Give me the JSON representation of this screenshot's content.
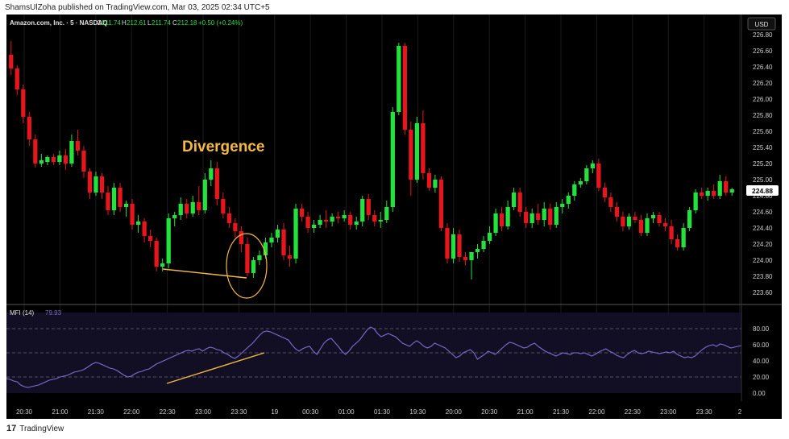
{
  "publisher_line": "ShamsUlZoha published on TradingView.com, Mar 03, 2025 02:34 UTC+5",
  "footer": {
    "logo_glyph": "17",
    "brand": "TradingView"
  },
  "symbol": {
    "name": "Amazon.com, Inc. · 5 · NASDAQ",
    "o_label": "O",
    "o": "211.74",
    "h_label": "H",
    "h": "212.61",
    "l_label": "L",
    "l": "211.74",
    "c_label": "C",
    "c": "212.18",
    "change": "+0.50 (+0.24%)"
  },
  "currency": "USD",
  "last_price": "224.88",
  "annotation": {
    "text": "Divergence",
    "color": "#f5b942"
  },
  "indicator": {
    "label": "MFI (14)",
    "value": "79.93"
  },
  "colors": {
    "up": "#22e33c",
    "down": "#e8161c",
    "mfi": "#7b6fd0",
    "annotation": "#f5b942",
    "mfi_bg": "#120f24"
  },
  "chart_data": [
    {
      "type": "candlestick",
      "price_axis_ticks": [
        "226.80",
        "226.60",
        "226.40",
        "226.20",
        "226.00",
        "225.80",
        "225.60",
        "225.40",
        "225.20",
        "225.00",
        "224.80",
        "224.60",
        "224.40",
        "224.20",
        "224.00",
        "223.80",
        "223.60"
      ],
      "ylim": [
        223.5,
        226.85
      ],
      "time_ticks": [
        "20:30",
        "21:00",
        "21:30",
        "22:00",
        "22:30",
        "23:00",
        "23:30",
        "19",
        "00:30",
        "01:00",
        "01:30",
        "19:30",
        "20:00",
        "20:30",
        "21:00",
        "21:30",
        "22:00",
        "22:30",
        "23:00",
        "23:30",
        "2"
      ],
      "candles": [
        [
          226.55,
          226.72,
          226.3,
          226.38
        ],
        [
          226.38,
          226.42,
          226.05,
          226.12
        ],
        [
          226.12,
          226.18,
          225.7,
          225.78
        ],
        [
          225.78,
          225.84,
          225.42,
          225.5
        ],
        [
          225.5,
          225.56,
          225.15,
          225.2
        ],
        [
          225.2,
          225.32,
          225.16,
          225.24
        ],
        [
          225.22,
          225.3,
          225.18,
          225.28
        ],
        [
          225.28,
          225.32,
          225.18,
          225.22
        ],
        [
          225.22,
          225.36,
          225.18,
          225.3
        ],
        [
          225.3,
          225.38,
          225.12,
          225.2
        ],
        [
          225.2,
          225.56,
          225.16,
          225.48
        ],
        [
          225.48,
          225.62,
          225.3,
          225.36
        ],
        [
          225.36,
          225.42,
          225.02,
          225.1
        ],
        [
          225.1,
          225.14,
          224.76,
          224.84
        ],
        [
          224.84,
          225.1,
          224.8,
          225.04
        ],
        [
          225.04,
          225.08,
          224.76,
          224.84
        ],
        [
          224.84,
          224.92,
          224.56,
          224.62
        ],
        [
          224.62,
          224.96,
          224.56,
          224.9
        ],
        [
          224.9,
          224.96,
          224.6,
          224.66
        ],
        [
          224.66,
          224.74,
          224.54,
          224.7
        ],
        [
          224.7,
          224.76,
          224.38,
          224.44
        ],
        [
          224.44,
          224.56,
          224.34,
          224.48
        ],
        [
          224.48,
          224.52,
          224.22,
          224.3
        ],
        [
          224.3,
          224.38,
          224.16,
          224.24
        ],
        [
          224.24,
          224.28,
          223.86,
          223.92
        ],
        [
          223.92,
          224.02,
          223.86,
          223.96
        ],
        [
          223.96,
          224.58,
          223.9,
          224.52
        ],
        [
          224.52,
          224.6,
          224.42,
          224.56
        ],
        [
          224.56,
          224.78,
          224.5,
          224.7
        ],
        [
          224.7,
          224.76,
          224.52,
          224.58
        ],
        [
          224.58,
          224.8,
          224.54,
          224.72
        ],
        [
          224.72,
          224.92,
          224.56,
          224.62
        ],
        [
          224.62,
          225.08,
          224.58,
          225.0
        ],
        [
          225.0,
          225.24,
          224.92,
          225.14
        ],
        [
          225.14,
          225.22,
          224.68,
          224.76
        ],
        [
          224.76,
          224.84,
          224.52,
          224.58
        ],
        [
          224.58,
          224.66,
          224.4,
          224.46
        ],
        [
          224.46,
          224.52,
          224.28,
          224.36
        ],
        [
          224.36,
          224.42,
          224.1,
          224.2
        ],
        [
          224.2,
          224.28,
          223.8,
          223.84
        ],
        [
          223.84,
          224.04,
          223.78,
          224.0
        ],
        [
          224.0,
          224.12,
          223.94,
          224.06
        ],
        [
          224.06,
          224.28,
          224.02,
          224.22
        ],
        [
          224.22,
          224.34,
          224.16,
          224.28
        ],
        [
          224.28,
          224.44,
          224.22,
          224.38
        ],
        [
          224.38,
          224.46,
          224.0,
          224.06
        ],
        [
          224.06,
          224.18,
          223.92,
          224.02
        ],
        [
          224.02,
          224.7,
          223.96,
          224.64
        ],
        [
          224.64,
          224.7,
          224.48,
          224.54
        ],
        [
          224.54,
          224.6,
          224.34,
          224.4
        ],
        [
          224.4,
          224.5,
          224.34,
          224.44
        ],
        [
          224.44,
          224.56,
          224.4,
          224.5
        ],
        [
          224.5,
          224.62,
          224.4,
          224.48
        ],
        [
          224.48,
          224.58,
          224.42,
          224.54
        ],
        [
          224.54,
          224.6,
          224.46,
          224.52
        ],
        [
          224.52,
          224.62,
          224.48,
          224.56
        ],
        [
          224.56,
          224.6,
          224.38,
          224.44
        ],
        [
          224.44,
          224.54,
          224.38,
          224.48
        ],
        [
          224.48,
          224.8,
          224.42,
          224.76
        ],
        [
          224.76,
          224.82,
          224.5,
          224.56
        ],
        [
          224.56,
          224.62,
          224.42,
          224.48
        ],
        [
          224.48,
          224.6,
          224.4,
          224.5
        ],
        [
          224.5,
          224.74,
          224.46,
          224.66
        ],
        [
          224.66,
          225.9,
          224.6,
          225.84
        ],
        [
          225.84,
          226.7,
          225.8,
          226.66
        ],
        [
          226.66,
          226.7,
          225.56,
          225.62
        ],
        [
          225.62,
          225.72,
          224.8,
          225.0
        ],
        [
          225.0,
          225.78,
          224.96,
          225.7
        ],
        [
          225.7,
          225.86,
          225.0,
          225.08
        ],
        [
          225.08,
          225.14,
          224.86,
          224.9
        ],
        [
          224.9,
          225.06,
          224.84,
          225.0
        ],
        [
          225.0,
          225.04,
          224.36,
          224.4
        ],
        [
          224.4,
          224.46,
          223.96,
          224.02
        ],
        [
          224.02,
          224.4,
          223.96,
          224.32
        ],
        [
          224.32,
          224.38,
          223.98,
          224.04
        ],
        [
          224.04,
          224.1,
          223.94,
          224.0
        ],
        [
          224.0,
          224.08,
          223.76,
          224.1
        ],
        [
          224.1,
          224.2,
          224.02,
          224.14
        ],
        [
          224.14,
          224.3,
          224.1,
          224.24
        ],
        [
          224.24,
          224.42,
          224.2,
          224.34
        ],
        [
          224.34,
          224.64,
          224.3,
          224.58
        ],
        [
          224.58,
          224.66,
          224.36,
          224.42
        ],
        [
          224.42,
          224.74,
          224.38,
          224.66
        ],
        [
          224.66,
          224.9,
          224.62,
          224.84
        ],
        [
          224.84,
          224.9,
          224.54,
          224.6
        ],
        [
          224.6,
          224.66,
          224.4,
          224.46
        ],
        [
          224.46,
          224.64,
          224.4,
          224.58
        ],
        [
          224.58,
          224.7,
          224.44,
          224.5
        ],
        [
          224.5,
          224.72,
          224.42,
          224.64
        ],
        [
          224.64,
          224.7,
          224.38,
          224.44
        ],
        [
          224.44,
          224.72,
          224.4,
          224.66
        ],
        [
          224.66,
          224.76,
          224.58,
          224.7
        ],
        [
          224.7,
          224.84,
          224.64,
          224.8
        ],
        [
          224.8,
          224.98,
          224.74,
          224.94
        ],
        [
          224.94,
          225.02,
          224.9,
          224.98
        ],
        [
          224.98,
          225.18,
          224.94,
          225.14
        ],
        [
          225.14,
          225.24,
          225.08,
          225.2
        ],
        [
          225.2,
          225.26,
          224.86,
          224.9
        ],
        [
          224.9,
          224.96,
          224.72,
          224.78
        ],
        [
          224.78,
          224.84,
          224.6,
          224.66
        ],
        [
          224.66,
          224.72,
          224.48,
          224.54
        ],
        [
          224.54,
          224.6,
          224.36,
          224.42
        ],
        [
          224.42,
          224.58,
          224.38,
          224.54
        ],
        [
          224.54,
          224.6,
          224.46,
          224.5
        ],
        [
          224.5,
          224.56,
          224.3,
          224.34
        ],
        [
          224.34,
          224.58,
          224.3,
          224.52
        ],
        [
          224.52,
          224.6,
          224.46,
          224.56
        ],
        [
          224.56,
          224.6,
          224.42,
          224.46
        ],
        [
          224.46,
          224.52,
          224.36,
          224.42
        ],
        [
          224.42,
          224.5,
          224.2,
          224.26
        ],
        [
          224.26,
          224.32,
          224.12,
          224.16
        ],
        [
          224.16,
          224.46,
          224.12,
          224.4
        ],
        [
          224.4,
          224.66,
          224.36,
          224.62
        ],
        [
          224.62,
          224.88,
          224.58,
          224.84
        ],
        [
          224.84,
          224.9,
          224.76,
          224.8
        ],
        [
          224.8,
          224.9,
          224.74,
          224.86
        ],
        [
          224.86,
          224.94,
          224.76,
          224.8
        ],
        [
          224.8,
          225.06,
          224.76,
          224.98
        ],
        [
          224.98,
          225.04,
          224.8,
          224.84
        ],
        [
          224.84,
          224.9,
          224.8,
          224.88
        ]
      ]
    },
    {
      "type": "line",
      "series": [
        {
          "name": "MFI (14)",
          "values": [
            18,
            17,
            15,
            14,
            10,
            8,
            7,
            8,
            9,
            10,
            12,
            14,
            16,
            17,
            18,
            20,
            21,
            22,
            24,
            26,
            27,
            28,
            30,
            33,
            36,
            38,
            37,
            35,
            33,
            31,
            30,
            28,
            25,
            22,
            20,
            21,
            24,
            26,
            27,
            29,
            30,
            33,
            36,
            38,
            40,
            42,
            44,
            46,
            48,
            50,
            52,
            53,
            52,
            54,
            55,
            52,
            55,
            57,
            56,
            54,
            53,
            50,
            48,
            45,
            43,
            46,
            50,
            54,
            58,
            62,
            67,
            72,
            76,
            77,
            76,
            74,
            72,
            70,
            68,
            66,
            60,
            55,
            52,
            55,
            57,
            58,
            52,
            48,
            55,
            62,
            66,
            68,
            63,
            58,
            52,
            48,
            52,
            58,
            62,
            66,
            72,
            78,
            82,
            80,
            74,
            70,
            72,
            74,
            72,
            70,
            66,
            62,
            60,
            58,
            62,
            65,
            62,
            58,
            56,
            58,
            62,
            60,
            58,
            56,
            52,
            48,
            44,
            46,
            50,
            52,
            54,
            50,
            42,
            45,
            48,
            52,
            50,
            48,
            52,
            56,
            60,
            63,
            62,
            60,
            58,
            56,
            57,
            60,
            62,
            58,
            55,
            52,
            50,
            48,
            46,
            48,
            50,
            49,
            48,
            50,
            50,
            49,
            50,
            48,
            46,
            48,
            51,
            53,
            55,
            52,
            50,
            47,
            45,
            44,
            48,
            51,
            53,
            50,
            49,
            50,
            52,
            51,
            50,
            49,
            50,
            51,
            50,
            52,
            48,
            46,
            44,
            45,
            44,
            46,
            50,
            54,
            57,
            59,
            60,
            58,
            61,
            60,
            58,
            56,
            57,
            58,
            59
          ]
        }
      ],
      "ylim": [
        0,
        100
      ],
      "y_ticks": [
        "80.00",
        "60.00",
        "40.00",
        "20.00",
        "0.00"
      ],
      "reference_levels": [
        20,
        50,
        80
      ]
    }
  ]
}
